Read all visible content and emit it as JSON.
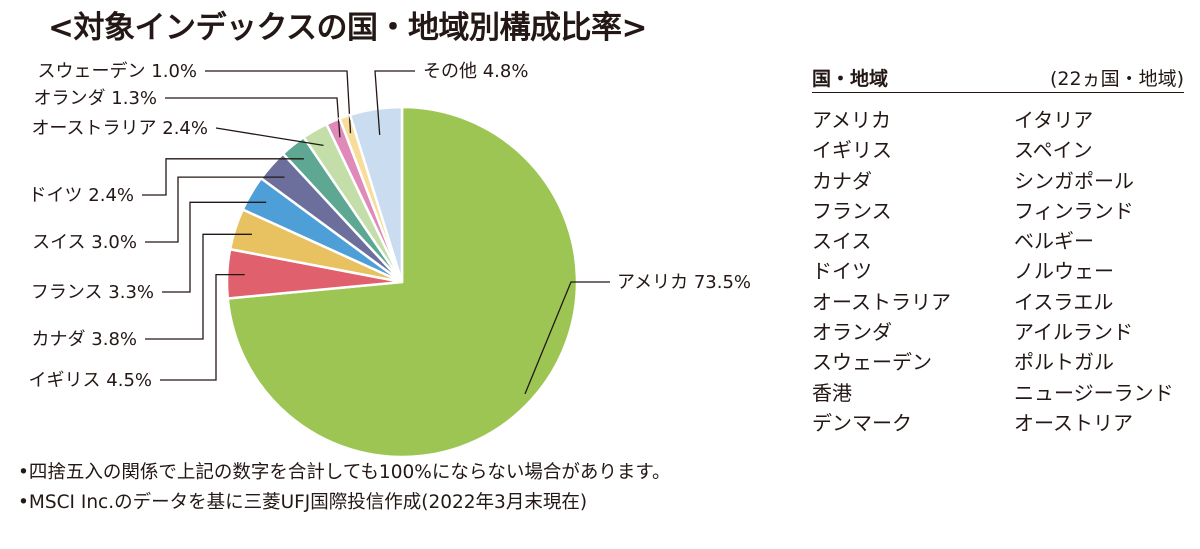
{
  "title": "<対象インデックスの国・地域別構成比率>",
  "chart_data": {
    "type": "pie",
    "title": "<対象インデックスの国・地域別構成比率>",
    "slices": [
      {
        "label": "アメリカ",
        "value": 73.5,
        "text": "アメリカ 73.5%",
        "color": "#9cc554"
      },
      {
        "label": "イギリス",
        "value": 4.5,
        "text": "イギリス 4.5%",
        "color": "#e0606e"
      },
      {
        "label": "カナダ",
        "value": 3.8,
        "text": "カナダ 3.8%",
        "color": "#e8c160"
      },
      {
        "label": "フランス",
        "value": 3.3,
        "text": "フランス 3.3%",
        "color": "#4e9fd8"
      },
      {
        "label": "スイス",
        "value": 3.0,
        "text": "スイス 3.0%",
        "color": "#6c6f9c"
      },
      {
        "label": "ドイツ",
        "value": 2.4,
        "text": "ドイツ 2.4%",
        "color": "#5ea893"
      },
      {
        "label": "オーストラリア",
        "value": 2.4,
        "text": "オーストラリア 2.4%",
        "color": "#c3dea8"
      },
      {
        "label": "オランダ",
        "value": 1.3,
        "text": "オランダ 1.3%",
        "color": "#df8ab9"
      },
      {
        "label": "スウェーデン",
        "value": 1.0,
        "text": "スウェーデン 1.0%",
        "color": "#f7dc9a"
      },
      {
        "label": "その他",
        "value": 4.8,
        "text": "その他 4.8%",
        "color": "#c9dcf0"
      }
    ]
  },
  "countries": {
    "heading": "国・地域",
    "count": "(22ヵ国・地域)",
    "col1": [
      "アメリカ",
      "イギリス",
      "カナダ",
      "フランス",
      "スイス",
      "ドイツ",
      "オーストラリア",
      "オランダ",
      "スウェーデン",
      "香港",
      "デンマーク"
    ],
    "col2": [
      "イタリア",
      "スペイン",
      "シンガポール",
      "フィンランド",
      "ベルギー",
      "ノルウェー",
      "イスラエル",
      "アイルランド",
      "ポルトガル",
      "ニュージーランド",
      "オーストリア"
    ]
  },
  "notes": [
    "•四捨五入の関係で上記の数字を合計しても100%にならない場合があります。",
    "•MSCI Inc.のデータを基に三菱UFJ国際投信作成(2022年3月末現在)"
  ]
}
